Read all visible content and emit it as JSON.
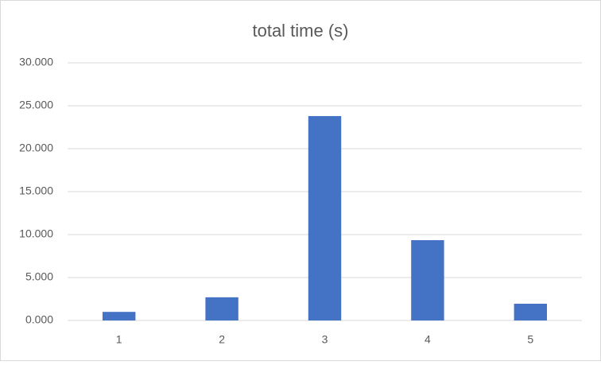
{
  "chart_data": {
    "type": "bar",
    "title": "total time (s)",
    "categories": [
      "1",
      "2",
      "3",
      "4",
      "5"
    ],
    "values": [
      1.0,
      2.7,
      23.8,
      9.35,
      1.95
    ],
    "color": "#4472c4",
    "ylim": [
      0,
      30
    ],
    "yticks": [
      {
        "value": 0,
        "label": "0.000"
      },
      {
        "value": 5,
        "label": "5.000"
      },
      {
        "value": 10,
        "label": "10.000"
      },
      {
        "value": 15,
        "label": "15.000"
      },
      {
        "value": 20,
        "label": "20.000"
      },
      {
        "value": 25,
        "label": "25.000"
      },
      {
        "value": 30,
        "label": "30.000"
      }
    ],
    "grid": true
  }
}
